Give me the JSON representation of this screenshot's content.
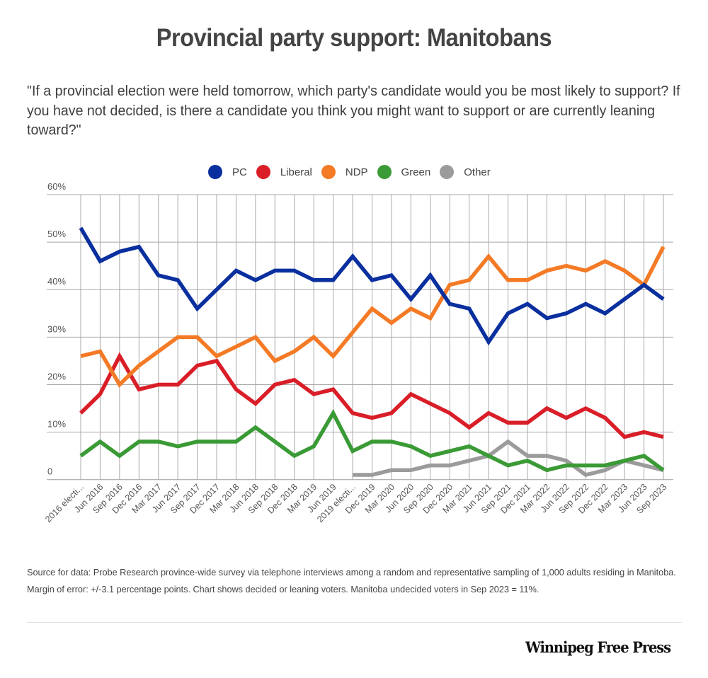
{
  "header": {
    "title": "Provincial party support: Manitobans",
    "subtitle": "\"If a provincial election were held tomorrow, which party's candidate would you be most likely to support? If you have not decided, is there a candidate you think you might want to support or are currently leaning toward?\""
  },
  "footer": {
    "source": "Source for data:  Probe Research province-wide survey via telephone interviews among a random and representative sampling of 1,000 adults residing in Manitoba.  Margin of error: +/-3.1 percentage points. Chart shows decided or leaning voters. Manitoba undecided voters in Sep 2023 = 11%.",
    "logo_text": "Winnipeg Free Press"
  },
  "chart_data": {
    "type": "line",
    "title": "Provincial party support: Manitobans",
    "xlabel": "",
    "ylabel": "",
    "ylim": [
      0,
      60
    ],
    "yticks": [
      0,
      10,
      20,
      30,
      40,
      50,
      60
    ],
    "ytick_labels": [
      "0",
      "10%",
      "20%",
      "30%",
      "40%",
      "50%",
      "60%"
    ],
    "grid": true,
    "legend_position": "top-center",
    "categories": [
      "2016 electi...",
      "Jun 2016",
      "Sep 2016",
      "Dec 2016",
      "Mar 2017",
      "Jun 2017",
      "Sep 2017",
      "Dec 2017",
      "Mar 2018",
      "Jun 2018",
      "Sep 2018",
      "Dec 2018",
      "Mar 2019",
      "Jun 2019",
      "2019 electi...",
      "Dec 2019",
      "Mar 2020",
      "Jun 2020",
      "Sep 2020",
      "Dec 2020",
      "Mar 2021",
      "Jun 2021",
      "Sep 2021",
      "Dec 2021",
      "Mar 2022",
      "Jun 2022",
      "Sep 2022",
      "Dec 2022",
      "Mar 2023",
      "Jun 2023",
      "Sep 2023"
    ],
    "series": [
      {
        "name": "PC",
        "color": "#0a2f9e",
        "values": [
          53,
          46,
          48,
          49,
          43,
          42,
          36,
          40,
          44,
          42,
          44,
          44,
          42,
          42,
          47,
          42,
          43,
          38,
          43,
          37,
          36,
          29,
          35,
          37,
          34,
          35,
          37,
          35,
          38,
          41,
          38
        ]
      },
      {
        "name": "Liberal",
        "color": "#d91e28",
        "values": [
          14,
          18,
          26,
          19,
          20,
          20,
          24,
          25,
          19,
          16,
          20,
          21,
          18,
          19,
          14,
          13,
          14,
          18,
          16,
          14,
          11,
          14,
          12,
          12,
          15,
          13,
          15,
          13,
          9,
          10,
          9
        ]
      },
      {
        "name": "NDP",
        "color": "#f47a25",
        "values": [
          26,
          27,
          20,
          24,
          27,
          30,
          30,
          26,
          28,
          30,
          25,
          27,
          30,
          26,
          31,
          36,
          33,
          36,
          34,
          41,
          42,
          47,
          42,
          42,
          44,
          45,
          44,
          46,
          44,
          41,
          49
        ]
      },
      {
        "name": "Green",
        "color": "#3a9a35",
        "values": [
          5,
          8,
          5,
          8,
          8,
          7,
          8,
          8,
          8,
          11,
          8,
          5,
          7,
          14,
          6,
          8,
          8,
          7,
          5,
          6,
          7,
          5,
          3,
          4,
          2,
          3,
          3,
          3,
          4,
          5,
          2
        ]
      },
      {
        "name": "Other",
        "color": "#9b9b9b",
        "values": [
          null,
          null,
          null,
          null,
          null,
          null,
          null,
          null,
          null,
          null,
          null,
          null,
          null,
          null,
          1,
          1,
          2,
          2,
          3,
          3,
          4,
          5,
          8,
          5,
          5,
          4,
          1,
          2,
          4,
          3,
          2
        ]
      }
    ]
  }
}
